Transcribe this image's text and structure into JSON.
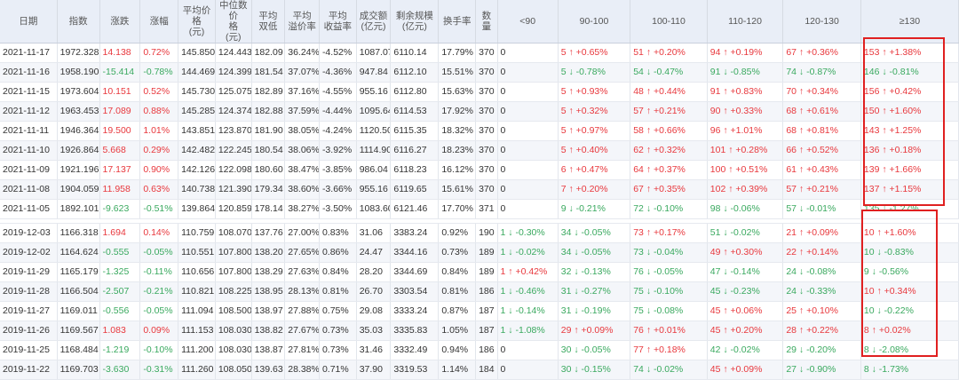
{
  "columns": [
    "日期",
    "指数",
    "涨跌",
    "涨幅",
    "平均价格(元)",
    "中位数价格(元)",
    "平均双低",
    "平均溢价率",
    "平均收益率",
    "成交额(亿元)",
    "剩余规模(亿元)",
    "换手率",
    "数量",
    "<90",
    "90-100",
    "100-110",
    "110-120",
    "120-130",
    "≥130"
  ],
  "rows_2021": [
    [
      "2021-11-17",
      "1972.328",
      "14.138",
      "0.72%",
      "145.850",
      "124.443",
      "182.09",
      "36.24%",
      "-4.52%",
      "1087.07",
      "6110.14",
      "17.79%",
      "370",
      "0",
      "5 ↑ +0.65%",
      "51 ↑ +0.20%",
      "94 ↑ +0.19%",
      "67 ↑ +0.36%",
      "153 ↑ +1.38%"
    ],
    [
      "2021-11-16",
      "1958.190",
      "-15.414",
      "-0.78%",
      "144.469",
      "124.399",
      "181.54",
      "37.07%",
      "-4.36%",
      "947.84",
      "6112.10",
      "15.51%",
      "370",
      "0",
      "5 ↓ -0.78%",
      "54 ↓ -0.47%",
      "91 ↓ -0.85%",
      "74 ↓ -0.87%",
      "146 ↓ -0.81%"
    ],
    [
      "2021-11-15",
      "1973.604",
      "10.151",
      "0.52%",
      "145.730",
      "125.075",
      "182.89",
      "37.16%",
      "-4.55%",
      "955.16",
      "6112.80",
      "15.63%",
      "370",
      "0",
      "5 ↑ +0.93%",
      "48 ↑ +0.44%",
      "91 ↑ +0.83%",
      "70 ↑ +0.34%",
      "156 ↑ +0.42%"
    ],
    [
      "2021-11-12",
      "1963.453",
      "17.089",
      "0.88%",
      "145.285",
      "124.374",
      "182.88",
      "37.59%",
      "-4.44%",
      "1095.64",
      "6114.53",
      "17.92%",
      "370",
      "0",
      "5 ↑ +0.32%",
      "57 ↑ +0.21%",
      "90 ↑ +0.33%",
      "68 ↑ +0.61%",
      "150 ↑ +1.60%"
    ],
    [
      "2021-11-11",
      "1946.364",
      "19.500",
      "1.01%",
      "143.851",
      "123.870",
      "181.90",
      "38.05%",
      "-4.24%",
      "1120.50",
      "6115.35",
      "18.32%",
      "370",
      "0",
      "5 ↑ +0.97%",
      "58 ↑ +0.66%",
      "96 ↑ +1.01%",
      "68 ↑ +0.81%",
      "143 ↑ +1.25%"
    ],
    [
      "2021-11-10",
      "1926.864",
      "5.668",
      "0.29%",
      "142.482",
      "122.245",
      "180.54",
      "38.06%",
      "-3.92%",
      "1114.90",
      "6116.27",
      "18.23%",
      "370",
      "0",
      "5 ↑ +0.40%",
      "62 ↑ +0.32%",
      "101 ↑ +0.28%",
      "66 ↑ +0.52%",
      "136 ↑ +0.18%"
    ],
    [
      "2021-11-09",
      "1921.196",
      "17.137",
      "0.90%",
      "142.126",
      "122.098",
      "180.60",
      "38.47%",
      "-3.85%",
      "986.04",
      "6118.23",
      "16.12%",
      "370",
      "0",
      "6 ↑ +0.47%",
      "64 ↑ +0.37%",
      "100 ↑ +0.51%",
      "61 ↑ +0.43%",
      "139 ↑ +1.66%"
    ],
    [
      "2021-11-08",
      "1904.059",
      "11.958",
      "0.63%",
      "140.738",
      "121.390",
      "179.34",
      "38.60%",
      "-3.66%",
      "955.16",
      "6119.65",
      "15.61%",
      "370",
      "0",
      "7 ↑ +0.20%",
      "67 ↑ +0.35%",
      "102 ↑ +0.39%",
      "57 ↑ +0.21%",
      "137 ↑ +1.15%"
    ],
    [
      "2021-11-05",
      "1892.101",
      "-9.623",
      "-0.51%",
      "139.864",
      "120.859",
      "178.14",
      "38.27%",
      "-3.50%",
      "1083.60",
      "6121.46",
      "17.70%",
      "371",
      "0",
      "9 ↓ -0.21%",
      "72 ↓ -0.10%",
      "98 ↓ -0.06%",
      "57 ↓ -0.01%",
      "135 ↓ -1.27%"
    ]
  ],
  "rows_2019": [
    [
      "2019-12-03",
      "1166.318",
      "1.694",
      "0.14%",
      "110.759",
      "108.070",
      "137.76",
      "27.00%",
      "0.83%",
      "31.06",
      "3383.24",
      "0.92%",
      "190",
      "1 ↓ -0.30%",
      "34 ↓ -0.05%",
      "73 ↑ +0.17%",
      "51 ↓ -0.02%",
      "21 ↑ +0.09%",
      "10 ↑ +1.60%"
    ],
    [
      "2019-12-02",
      "1164.624",
      "-0.555",
      "-0.05%",
      "110.551",
      "107.800",
      "138.20",
      "27.65%",
      "0.86%",
      "24.47",
      "3344.16",
      "0.73%",
      "189",
      "1 ↓ -0.02%",
      "34 ↓ -0.05%",
      "73 ↓ -0.04%",
      "49 ↑ +0.30%",
      "22 ↑ +0.14%",
      "10 ↓ -0.83%"
    ],
    [
      "2019-11-29",
      "1165.179",
      "-1.325",
      "-0.11%",
      "110.656",
      "107.800",
      "138.29",
      "27.63%",
      "0.84%",
      "28.20",
      "3344.69",
      "0.84%",
      "189",
      "1 ↑ +0.42%",
      "32 ↓ -0.13%",
      "76 ↓ -0.05%",
      "47 ↓ -0.14%",
      "24 ↓ -0.08%",
      "9 ↓ -0.56%"
    ],
    [
      "2019-11-28",
      "1166.504",
      "-2.507",
      "-0.21%",
      "110.821",
      "108.225",
      "138.95",
      "28.13%",
      "0.81%",
      "26.70",
      "3303.54",
      "0.81%",
      "186",
      "1 ↓ -0.46%",
      "31 ↓ -0.27%",
      "75 ↓ -0.10%",
      "45 ↓ -0.23%",
      "24 ↓ -0.33%",
      "10 ↑ +0.34%"
    ],
    [
      "2019-11-27",
      "1169.011",
      "-0.556",
      "-0.05%",
      "111.094",
      "108.500",
      "138.97",
      "27.88%",
      "0.75%",
      "29.08",
      "3333.24",
      "0.87%",
      "187",
      "1 ↓ -0.14%",
      "31 ↓ -0.19%",
      "75 ↓ -0.08%",
      "45 ↑ +0.06%",
      "25 ↑ +0.10%",
      "10 ↓ -0.22%"
    ],
    [
      "2019-11-26",
      "1169.567",
      "1.083",
      "0.09%",
      "111.153",
      "108.030",
      "138.82",
      "27.67%",
      "0.73%",
      "35.03",
      "3335.83",
      "1.05%",
      "187",
      "1 ↓ -1.08%",
      "29 ↑ +0.09%",
      "76 ↑ +0.01%",
      "45 ↑ +0.20%",
      "28 ↑ +0.22%",
      "8 ↑ +0.02%"
    ],
    [
      "2019-11-25",
      "1168.484",
      "-1.219",
      "-0.10%",
      "111.200",
      "108.030",
      "138.87",
      "27.81%",
      "0.73%",
      "31.46",
      "3332.49",
      "0.94%",
      "186",
      "0",
      "30 ↓ -0.05%",
      "77 ↑ +0.18%",
      "42 ↓ -0.02%",
      "29 ↓ -0.20%",
      "8 ↓ -2.08%"
    ],
    [
      "2019-11-22",
      "1169.703",
      "-3.630",
      "-0.31%",
      "111.260",
      "108.050",
      "139.63",
      "28.38%",
      "0.71%",
      "37.90",
      "3319.53",
      "1.14%",
      "184",
      "0",
      "30 ↓ -0.15%",
      "74 ↓ -0.02%",
      "45 ↑ +0.09%",
      "27 ↓ -0.90%",
      "8 ↓ -1.73%"
    ]
  ],
  "colors": {
    "up": "#e8383d",
    "down": "#3aa95f",
    "highlight": "#e02020",
    "header_bg": "#e9eef7"
  }
}
